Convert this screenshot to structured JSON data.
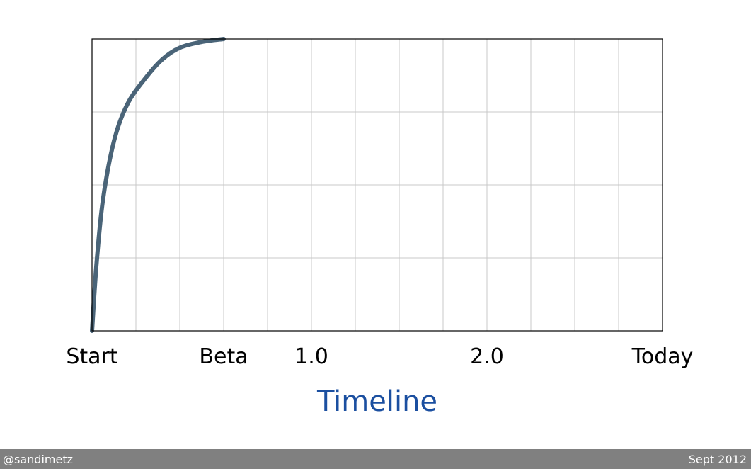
{
  "chart_data": {
    "type": "line",
    "xlabel": "Timeline",
    "ylabel": "",
    "x_ticks": [
      {
        "label": "Start",
        "x": 0
      },
      {
        "label": "Beta",
        "x": 3
      },
      {
        "label": "1.0",
        "x": 5
      },
      {
        "label": "2.0",
        "x": 9
      },
      {
        "label": "Today",
        "x": 13
      }
    ],
    "xlim": [
      0,
      13
    ],
    "ylim": [
      0,
      4
    ],
    "grid": true,
    "series": [
      {
        "points": [
          [
            0,
            0
          ],
          [
            0.1,
            0.9
          ],
          [
            0.25,
            1.8
          ],
          [
            0.5,
            2.6
          ],
          [
            0.8,
            3.1
          ],
          [
            1.2,
            3.45
          ],
          [
            1.6,
            3.72
          ],
          [
            2.0,
            3.88
          ],
          [
            2.5,
            3.96
          ],
          [
            3.0,
            4.0
          ]
        ]
      }
    ],
    "colors": {
      "line": "#4a6478",
      "grid": "#c8c8c8",
      "frame": "#000000",
      "axis_title": "#1b4fa0"
    }
  },
  "footer": {
    "left": "@sandimetz",
    "right": "Sept 2012"
  }
}
